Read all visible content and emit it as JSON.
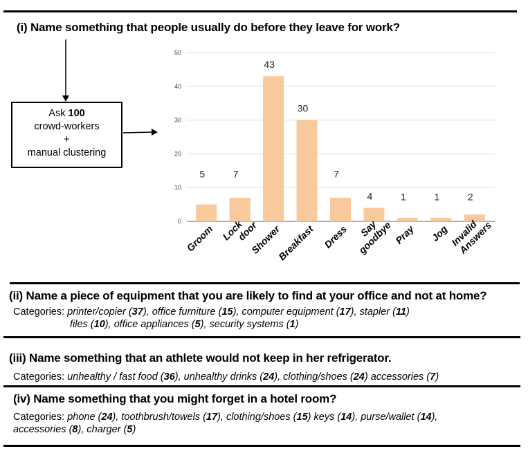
{
  "question_i": "(i) Name something that people usually do before they leave for work?",
  "process_box": {
    "line1_prefix": "Ask ",
    "line1_bold": "100",
    "line2": "crowd-workers",
    "line3": "+",
    "line4": "manual clustering"
  },
  "chart_data": {
    "type": "bar",
    "categories": [
      "Groom",
      "Lock\ndoor",
      "Shower",
      "Breakfast",
      "Dress",
      "Say\ngoodbye",
      "Pray",
      "Jog",
      "Invalid\nAnswers"
    ],
    "values": [
      5,
      7,
      43,
      30,
      7,
      4,
      1,
      1,
      2
    ],
    "yticks": [
      0,
      10,
      20,
      30,
      40,
      50
    ],
    "ylim": [
      0,
      50
    ],
    "grid": true,
    "title": "",
    "xlabel": "",
    "ylabel": "",
    "bar_color": "#f8c99c",
    "grid_color": "#dddddd"
  },
  "question_ii": "(ii) Name a piece of equipment that you are likely to find at your office and not at home?",
  "categories_label": "Categories:",
  "cats_ii_line1": [
    {
      "name": "printer/copier",
      "count": "37",
      "sep": ", "
    },
    {
      "name": "office furniture",
      "count": "15",
      "sep": ", "
    },
    {
      "name": "computer equipment",
      "count": "17",
      "sep": ", "
    },
    {
      "name": "stapler",
      "count": "11",
      "sep": ""
    }
  ],
  "cats_ii_line2": [
    {
      "name": "files",
      "count": "10",
      "sep": ", "
    },
    {
      "name": "office appliances",
      "count": "5",
      "sep": ", "
    },
    {
      "name": "security systems",
      "count": "1",
      "sep": ""
    }
  ],
  "question_iii": "(iii) Name something that an athlete would not keep in her refrigerator.",
  "cats_iii": [
    {
      "name": "unhealthy / fast food",
      "count": "36",
      "sep": ", "
    },
    {
      "name": "unhealthy drinks",
      "count": "24",
      "sep": ", "
    },
    {
      "name": "clothing/shoes",
      "count": "24",
      "sep": " "
    },
    {
      "name": "accessories",
      "count": "7",
      "sep": ""
    }
  ],
  "question_iv": "(iv) Name something that you might forget in a hotel room?",
  "cats_iv_line1": [
    {
      "name": "phone",
      "count": "24",
      "sep": ", "
    },
    {
      "name": "toothbrush/towels",
      "count": "17",
      "sep": ", "
    },
    {
      "name": "clothing/shoes",
      "count": "15",
      "sep": " "
    },
    {
      "name": "keys",
      "count": "14",
      "sep": ", "
    },
    {
      "name": "purse/wallet",
      "count": "14",
      "sep": ","
    }
  ],
  "cats_iv_line2": [
    {
      "name": "accessories",
      "count": "8",
      "sep": ", "
    },
    {
      "name": "charger",
      "count": "5",
      "sep": ""
    }
  ]
}
